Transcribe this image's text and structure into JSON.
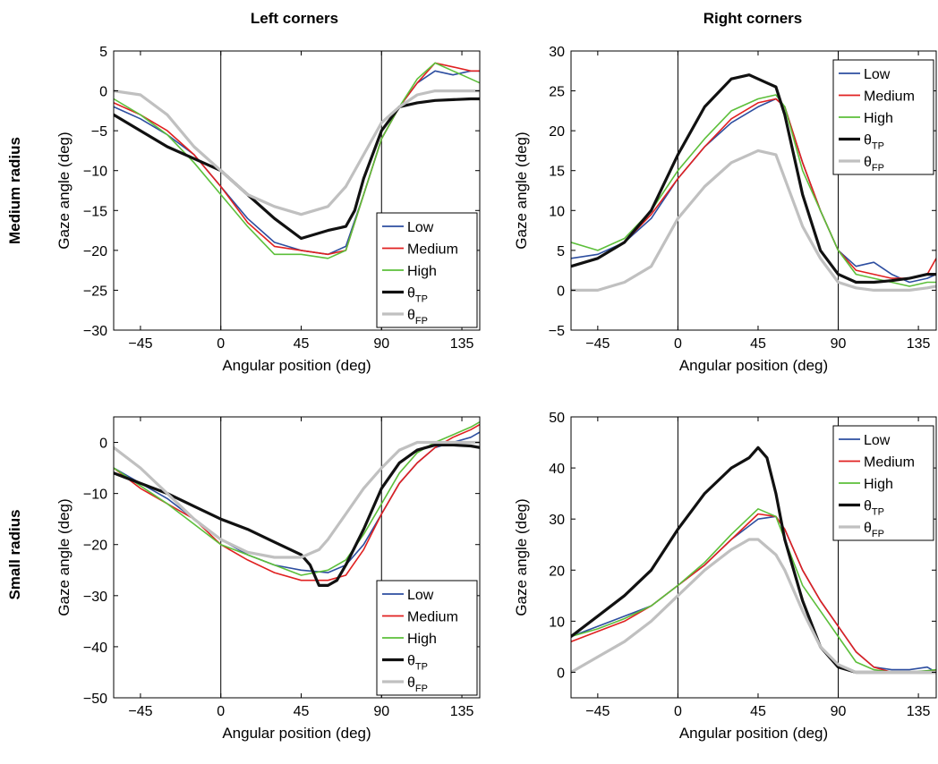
{
  "figure": {
    "col_titles": [
      "Left corners",
      "Right corners"
    ],
    "row_titles": [
      "Medium radius",
      "Small radius"
    ]
  },
  "colors": {
    "Low": "#2d4ea0",
    "Medium": "#e02020",
    "High": "#5cbf3a",
    "theta_TP": "#111111",
    "theta_FP": "#c0c0c0"
  },
  "legend": {
    "entries": [
      {
        "key": "Low",
        "label": "Low",
        "sub": ""
      },
      {
        "key": "Medium",
        "label": "Medium",
        "sub": ""
      },
      {
        "key": "High",
        "label": "High",
        "sub": ""
      },
      {
        "key": "theta_TP",
        "label": "θ",
        "sub": "TP"
      },
      {
        "key": "theta_FP",
        "label": "θ",
        "sub": "FP"
      }
    ]
  },
  "chart_data": [
    {
      "type": "line",
      "panel": "medium-left",
      "title": "Left corners",
      "xlabel": "Angular position (deg)",
      "ylabel": "Gaze angle (deg)",
      "xlim": [
        -60,
        145
      ],
      "ylim": [
        -30,
        5
      ],
      "xticks": [
        -45,
        0,
        45,
        90,
        135
      ],
      "yticks": [
        5,
        0,
        -5,
        -10,
        -15,
        -20,
        -25,
        -30
      ],
      "vlines": [
        0,
        90
      ],
      "legend_position": "lower-right",
      "series": [
        {
          "name": "Low",
          "x": [
            -60,
            -45,
            -30,
            -15,
            0,
            15,
            30,
            45,
            60,
            70,
            80,
            90,
            100,
            110,
            120,
            130,
            140,
            145
          ],
          "y": [
            -2,
            -3.5,
            -5.5,
            -8,
            -12,
            -16,
            -19,
            -20,
            -20.5,
            -19.5,
            -13,
            -6,
            -2,
            1,
            2.5,
            2,
            2.5,
            2.5
          ],
          "width": 1.6
        },
        {
          "name": "Medium",
          "x": [
            -60,
            -45,
            -30,
            -15,
            0,
            15,
            30,
            45,
            60,
            70,
            80,
            90,
            100,
            110,
            120,
            130,
            140,
            145
          ],
          "y": [
            -1.5,
            -3,
            -5,
            -8,
            -12,
            -16.5,
            -19.5,
            -20,
            -20.5,
            -20,
            -13,
            -6,
            -2,
            1,
            3.5,
            3,
            2.5,
            2.5
          ],
          "width": 1.6
        },
        {
          "name": "High",
          "x": [
            -60,
            -45,
            -30,
            -15,
            0,
            15,
            30,
            45,
            60,
            70,
            80,
            90,
            100,
            110,
            120,
            130,
            140,
            145
          ],
          "y": [
            -1,
            -3,
            -5.5,
            -9,
            -13,
            -17,
            -20.5,
            -20.5,
            -21,
            -20,
            -13,
            -6,
            -2,
            1.5,
            3.5,
            2.5,
            1.5,
            1
          ],
          "width": 1.6
        },
        {
          "name": "θTP",
          "x": [
            -60,
            -45,
            -30,
            -15,
            0,
            15,
            30,
            45,
            60,
            70,
            75,
            80,
            90,
            100,
            110,
            120,
            130,
            140,
            145
          ],
          "y": [
            -3,
            -5,
            -7,
            -8.5,
            -10,
            -13,
            -16,
            -18.5,
            -17.5,
            -17,
            -15,
            -11,
            -5,
            -2,
            -1.5,
            -1.2,
            -1.1,
            -1,
            -1
          ],
          "width": 3.2
        },
        {
          "name": "θFP",
          "x": [
            -60,
            -45,
            -30,
            -15,
            0,
            15,
            30,
            45,
            60,
            70,
            80,
            90,
            100,
            110,
            120,
            130,
            140,
            145
          ],
          "y": [
            0,
            -0.5,
            -3,
            -7,
            -10,
            -13,
            -14.5,
            -15.5,
            -14.5,
            -12,
            -8,
            -4,
            -2,
            -0.5,
            0,
            0,
            0,
            0
          ],
          "width": 3.2
        }
      ]
    },
    {
      "type": "line",
      "panel": "medium-right",
      "title": "Right corners",
      "xlabel": "Angular position (deg)",
      "ylabel": "Gaze angle (deg)",
      "xlim": [
        -60,
        145
      ],
      "ylim": [
        -5,
        30
      ],
      "xticks": [
        -45,
        0,
        45,
        90,
        135
      ],
      "yticks": [
        30,
        25,
        20,
        15,
        10,
        5,
        0,
        -5
      ],
      "vlines": [
        0,
        90
      ],
      "legend_position": "top-right",
      "series": [
        {
          "name": "Low",
          "x": [
            -60,
            -45,
            -30,
            -15,
            0,
            15,
            30,
            45,
            55,
            60,
            70,
            80,
            90,
            100,
            110,
            120,
            130,
            140,
            145
          ],
          "y": [
            4,
            4.5,
            6,
            9,
            14,
            18,
            21,
            23,
            24,
            23,
            16,
            10,
            5,
            3,
            3.5,
            2,
            1,
            1.5,
            2
          ],
          "width": 1.6
        },
        {
          "name": "Medium",
          "x": [
            -60,
            -45,
            -30,
            -15,
            0,
            15,
            30,
            45,
            55,
            60,
            70,
            80,
            90,
            100,
            110,
            120,
            130,
            140,
            145
          ],
          "y": [
            3,
            4,
            6,
            9.5,
            14,
            18,
            21.5,
            23.5,
            24,
            23,
            16,
            10,
            5,
            2.5,
            2,
            1.5,
            1.5,
            2,
            4
          ],
          "width": 1.6
        },
        {
          "name": "High",
          "x": [
            -60,
            -45,
            -30,
            -15,
            0,
            15,
            30,
            45,
            55,
            60,
            70,
            80,
            90,
            100,
            110,
            120,
            130,
            140,
            145
          ],
          "y": [
            6,
            5,
            6.5,
            10,
            15,
            19,
            22.5,
            24,
            24.5,
            23,
            15,
            10,
            5,
            2,
            1.5,
            1,
            0.5,
            1,
            1
          ],
          "width": 1.6
        },
        {
          "name": "θTP",
          "x": [
            -60,
            -45,
            -30,
            -15,
            0,
            15,
            30,
            40,
            50,
            55,
            60,
            70,
            80,
            90,
            100,
            110,
            120,
            130,
            140,
            145
          ],
          "y": [
            3,
            4,
            6,
            10,
            17,
            23,
            26.5,
            27,
            26,
            25.5,
            22,
            12,
            5,
            2,
            1,
            1,
            1.2,
            1.5,
            2,
            2
          ],
          "width": 3.2
        },
        {
          "name": "θFP",
          "x": [
            -60,
            -45,
            -30,
            -15,
            0,
            15,
            30,
            45,
            55,
            60,
            70,
            80,
            90,
            100,
            110,
            120,
            130,
            140,
            145
          ],
          "y": [
            0,
            0,
            1,
            3,
            9,
            13,
            16,
            17.5,
            17,
            14,
            8,
            4,
            1,
            0.3,
            0,
            0,
            0,
            0.3,
            0.5
          ],
          "width": 3.2
        }
      ]
    },
    {
      "type": "line",
      "panel": "small-left",
      "title": "",
      "xlabel": "Angular position (deg)",
      "ylabel": "Gaze angle (deg)",
      "xlim": [
        -60,
        145
      ],
      "ylim": [
        -50,
        5
      ],
      "xticks": [
        -45,
        0,
        45,
        90,
        135
      ],
      "yticks": [
        0,
        -10,
        -20,
        -30,
        -40,
        -50
      ],
      "vlines": [
        0,
        90
      ],
      "legend_position": "lower-right",
      "series": [
        {
          "name": "Low",
          "x": [
            -60,
            -45,
            -30,
            -15,
            0,
            15,
            30,
            45,
            60,
            70,
            80,
            90,
            100,
            110,
            120,
            130,
            140,
            145
          ],
          "y": [
            -5,
            -8,
            -11,
            -15,
            -19,
            -22,
            -24,
            -25,
            -25.5,
            -24,
            -20,
            -14,
            -8,
            -4,
            -1,
            0,
            1,
            2
          ],
          "width": 1.6
        },
        {
          "name": "Medium",
          "x": [
            -60,
            -45,
            -30,
            -15,
            0,
            15,
            30,
            45,
            60,
            70,
            80,
            90,
            100,
            110,
            120,
            130,
            140,
            145
          ],
          "y": [
            -5,
            -9,
            -12,
            -15,
            -20,
            -23,
            -25.5,
            -27,
            -27,
            -26,
            -21,
            -14,
            -8,
            -4,
            -1,
            1,
            2.5,
            3.5
          ],
          "width": 1.6
        },
        {
          "name": "High",
          "x": [
            -60,
            -45,
            -30,
            -15,
            0,
            15,
            30,
            45,
            60,
            70,
            80,
            90,
            100,
            110,
            120,
            130,
            140,
            145
          ],
          "y": [
            -5,
            -8.5,
            -12,
            -16,
            -20,
            -22,
            -24,
            -26,
            -25,
            -23,
            -18,
            -12,
            -6,
            -2,
            0,
            1.5,
            3,
            4
          ],
          "width": 1.6
        },
        {
          "name": "θTP",
          "x": [
            -60,
            -45,
            -30,
            -15,
            0,
            15,
            30,
            45,
            50,
            55,
            60,
            65,
            70,
            80,
            90,
            100,
            110,
            120,
            130,
            140,
            145
          ],
          "y": [
            -6,
            -8,
            -10,
            -12.5,
            -15,
            -17,
            -19.5,
            -22,
            -24,
            -28,
            -28,
            -27,
            -24,
            -17,
            -9,
            -4,
            -1.5,
            -0.5,
            -0.5,
            -0.7,
            -1
          ],
          "width": 3.2
        },
        {
          "name": "θFP",
          "x": [
            -60,
            -45,
            -30,
            -15,
            0,
            15,
            30,
            45,
            55,
            60,
            70,
            80,
            90,
            100,
            110,
            120,
            130,
            140,
            145
          ],
          "y": [
            -1,
            -5,
            -10,
            -15,
            -19,
            -21.5,
            -22.5,
            -22.5,
            -21,
            -19,
            -14,
            -9,
            -5,
            -1.5,
            0,
            0,
            0,
            0,
            0
          ],
          "width": 3.2
        }
      ]
    },
    {
      "type": "line",
      "panel": "small-right",
      "title": "",
      "xlabel": "Angular position (deg)",
      "ylabel": "Gaze angle (deg)",
      "xlim": [
        -60,
        145
      ],
      "ylim": [
        -5,
        50
      ],
      "xticks": [
        -45,
        0,
        45,
        90,
        135
      ],
      "yticks": [
        50,
        40,
        30,
        20,
        10,
        0
      ],
      "vlines": [
        0,
        90
      ],
      "legend_position": "top-right",
      "series": [
        {
          "name": "Low",
          "x": [
            -60,
            -45,
            -30,
            -15,
            0,
            15,
            30,
            45,
            55,
            60,
            70,
            80,
            90,
            100,
            110,
            120,
            130,
            140,
            145
          ],
          "y": [
            7,
            9,
            11,
            13,
            17,
            21,
            26,
            30,
            30.5,
            28,
            20,
            14,
            9,
            4,
            1,
            0.5,
            0.5,
            1,
            0
          ],
          "width": 1.6
        },
        {
          "name": "Medium",
          "x": [
            -60,
            -45,
            -30,
            -15,
            0,
            15,
            30,
            45,
            55,
            60,
            70,
            80,
            90,
            100,
            110,
            120,
            130,
            140,
            145
          ],
          "y": [
            6,
            8,
            10,
            13,
            17,
            21,
            26,
            31,
            30.5,
            28,
            20,
            14,
            9,
            4,
            1,
            0,
            0,
            0,
            0.5
          ],
          "width": 1.6
        },
        {
          "name": "High",
          "x": [
            -60,
            -45,
            -30,
            -15,
            0,
            15,
            30,
            45,
            55,
            60,
            70,
            80,
            90,
            100,
            110,
            120,
            130,
            140,
            145
          ],
          "y": [
            7,
            8.5,
            10.5,
            13,
            17,
            21.5,
            27,
            32,
            30.5,
            26,
            17,
            12,
            7,
            2,
            0.5,
            0,
            0,
            0.3,
            0.5
          ],
          "width": 1.6
        },
        {
          "name": "θTP",
          "x": [
            -60,
            -45,
            -30,
            -15,
            0,
            15,
            30,
            40,
            45,
            50,
            55,
            60,
            70,
            80,
            90,
            100,
            110,
            120,
            130,
            140,
            145
          ],
          "y": [
            7,
            11,
            15,
            20,
            28,
            35,
            40,
            42,
            44,
            42,
            35,
            26,
            14,
            5,
            1,
            0,
            0,
            0,
            0,
            0,
            0
          ],
          "width": 3.2
        },
        {
          "name": "θFP",
          "x": [
            -60,
            -45,
            -30,
            -15,
            0,
            15,
            30,
            40,
            45,
            55,
            60,
            70,
            80,
            90,
            100,
            110,
            120,
            130,
            140,
            145
          ],
          "y": [
            0,
            3,
            6,
            10,
            15,
            20,
            24,
            26,
            26,
            23,
            20,
            12,
            5,
            1.5,
            0,
            0,
            0,
            0,
            0,
            0
          ],
          "width": 3.2
        }
      ]
    }
  ]
}
